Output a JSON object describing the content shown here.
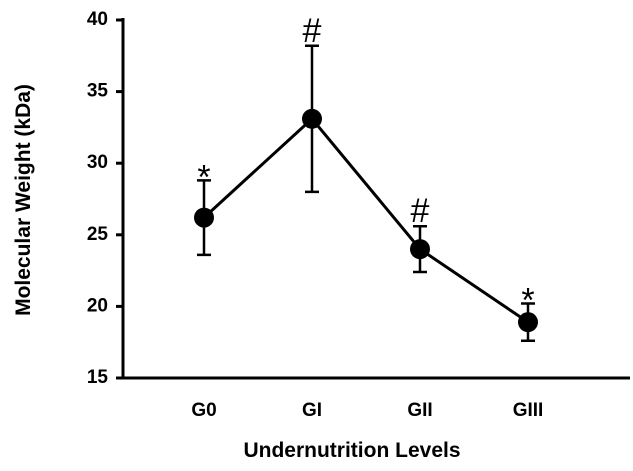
{
  "chart_data": {
    "type": "line",
    "categories": [
      "G0",
      "GI",
      "GII",
      "GIII"
    ],
    "values": [
      26.2,
      33.1,
      24.0,
      18.9
    ],
    "errors": [
      2.6,
      5.1,
      1.6,
      1.3
    ],
    "annotations": [
      "*",
      "#",
      "#",
      "*"
    ],
    "color": "#000000",
    "xlabel": "Undernutrition Levels",
    "ylabel": "Molecular Weight (kDa)",
    "ylim": [
      15,
      40
    ],
    "yticks": [
      15,
      20,
      25,
      30,
      35,
      40
    ],
    "grid": false
  }
}
